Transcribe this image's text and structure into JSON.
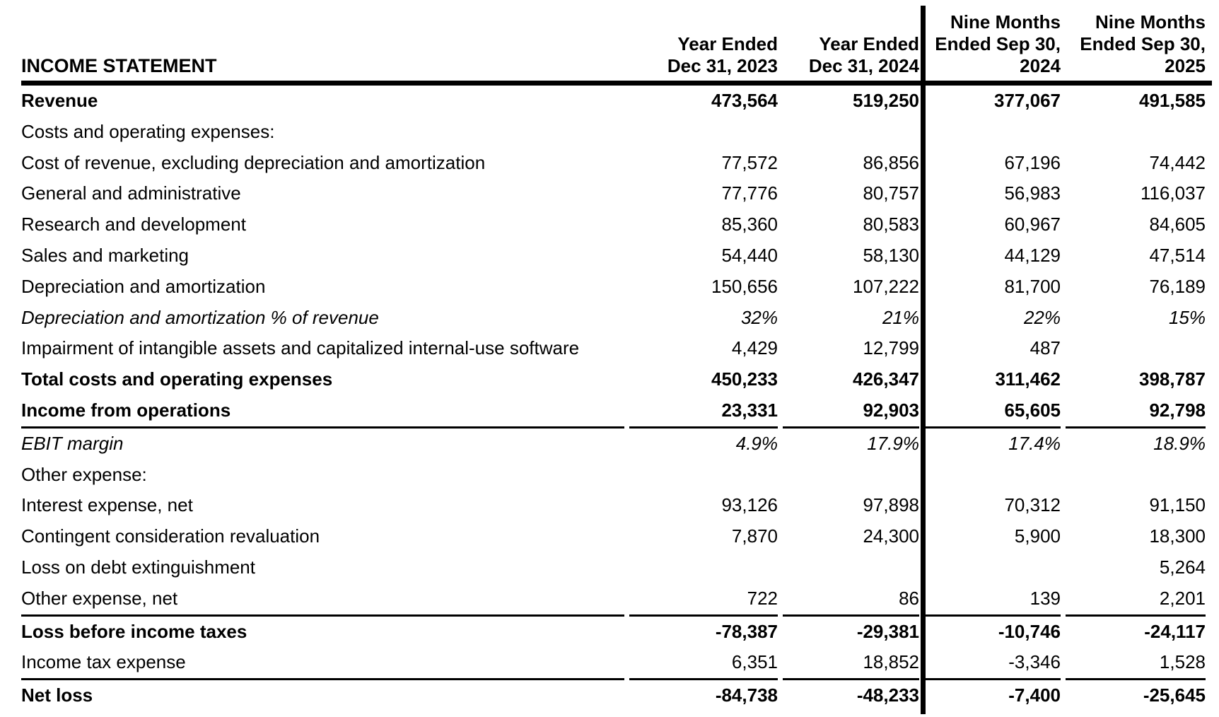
{
  "colors": {
    "text": "#000000",
    "background": "#ffffff",
    "rules": "#000000"
  },
  "table": {
    "title": "INCOME STATEMENT",
    "columns": [
      "Year Ended\nDec 31, 2023",
      "Year Ended\nDec 31, 2024",
      "Nine Months\nEnded Sep 30,\n2024",
      "Nine Months\nEnded Sep 30,\n2025"
    ],
    "rows": [
      {
        "label": "Revenue",
        "style": "bold",
        "value_styles": [
          "bold",
          "bold",
          "regular",
          "regular"
        ],
        "underline": false,
        "values": [
          "473,564",
          "519,250",
          "377,067",
          "491,585"
        ]
      },
      {
        "label": "Costs and operating expenses:",
        "style": "regular",
        "underline": false,
        "values": [
          "",
          "",
          "",
          ""
        ]
      },
      {
        "label": "Cost of revenue, excluding depreciation and amortization",
        "style": "regular",
        "underline": false,
        "values": [
          "77,572",
          "86,856",
          "67,196",
          "74,442"
        ]
      },
      {
        "label": "General and administrative",
        "style": "regular",
        "underline": false,
        "values": [
          "77,776",
          "80,757",
          "56,983",
          "116,037"
        ]
      },
      {
        "label": "Research and development",
        "style": "regular",
        "underline": false,
        "values": [
          "85,360",
          "80,583",
          "60,967",
          "84,605"
        ]
      },
      {
        "label": "Sales and marketing",
        "style": "regular",
        "underline": false,
        "values": [
          "54,440",
          "58,130",
          "44,129",
          "47,514"
        ]
      },
      {
        "label": "Depreciation and amortization",
        "style": "regular",
        "underline": false,
        "values": [
          "150,656",
          "107,222",
          "81,700",
          "76,189"
        ]
      },
      {
        "label": "Depreciation and amortization % of revenue",
        "style": "italic",
        "underline": false,
        "values": [
          "32%",
          "21%",
          "22%",
          "15%"
        ]
      },
      {
        "label": "Impairment of intangible assets and capitalized internal-use software",
        "style": "regular",
        "underline": false,
        "values": [
          "4,429",
          "12,799",
          "487",
          ""
        ]
      },
      {
        "label": "Total costs and operating expenses",
        "style": "bold",
        "underline": false,
        "values": [
          "450,233",
          "426,347",
          "311,462",
          "398,787"
        ]
      },
      {
        "label": "Income from operations",
        "style": "bold",
        "underline": true,
        "values": [
          "23,331",
          "92,903",
          "65,605",
          "92,798"
        ]
      },
      {
        "label": "EBIT margin",
        "style": "italic",
        "underline": false,
        "values": [
          "4.9%",
          "17.9%",
          "17.4%",
          "18.9%"
        ]
      },
      {
        "label": "Other expense:",
        "style": "regular",
        "underline": false,
        "values": [
          "",
          "",
          "",
          ""
        ]
      },
      {
        "label": "Interest expense, net",
        "style": "regular",
        "underline": false,
        "values": [
          "93,126",
          "97,898",
          "70,312",
          "91,150"
        ]
      },
      {
        "label": "Contingent consideration revaluation",
        "style": "regular",
        "underline": false,
        "values": [
          "7,870",
          "24,300",
          "5,900",
          "18,300"
        ]
      },
      {
        "label": "Loss on debt extinguishment",
        "style": "regular",
        "underline": false,
        "values": [
          "",
          "",
          "",
          "5,264"
        ]
      },
      {
        "label": "Other expense, net",
        "style": "regular",
        "underline": true,
        "values": [
          "722",
          "86",
          "139",
          "2,201"
        ]
      },
      {
        "label": "Loss before income taxes",
        "style": "bold",
        "underline": false,
        "values": [
          "-78,387",
          "-29,381",
          "-10,746",
          "-24,117"
        ]
      },
      {
        "label": "Income tax expense",
        "style": "regular",
        "underline": true,
        "values": [
          "6,351",
          "18,852",
          "-3,346",
          "1,528"
        ]
      },
      {
        "label": "Net loss",
        "style": "bold",
        "underline": false,
        "values": [
          "-84,738",
          "-48,233",
          "-7,400",
          "-25,645"
        ]
      }
    ]
  }
}
